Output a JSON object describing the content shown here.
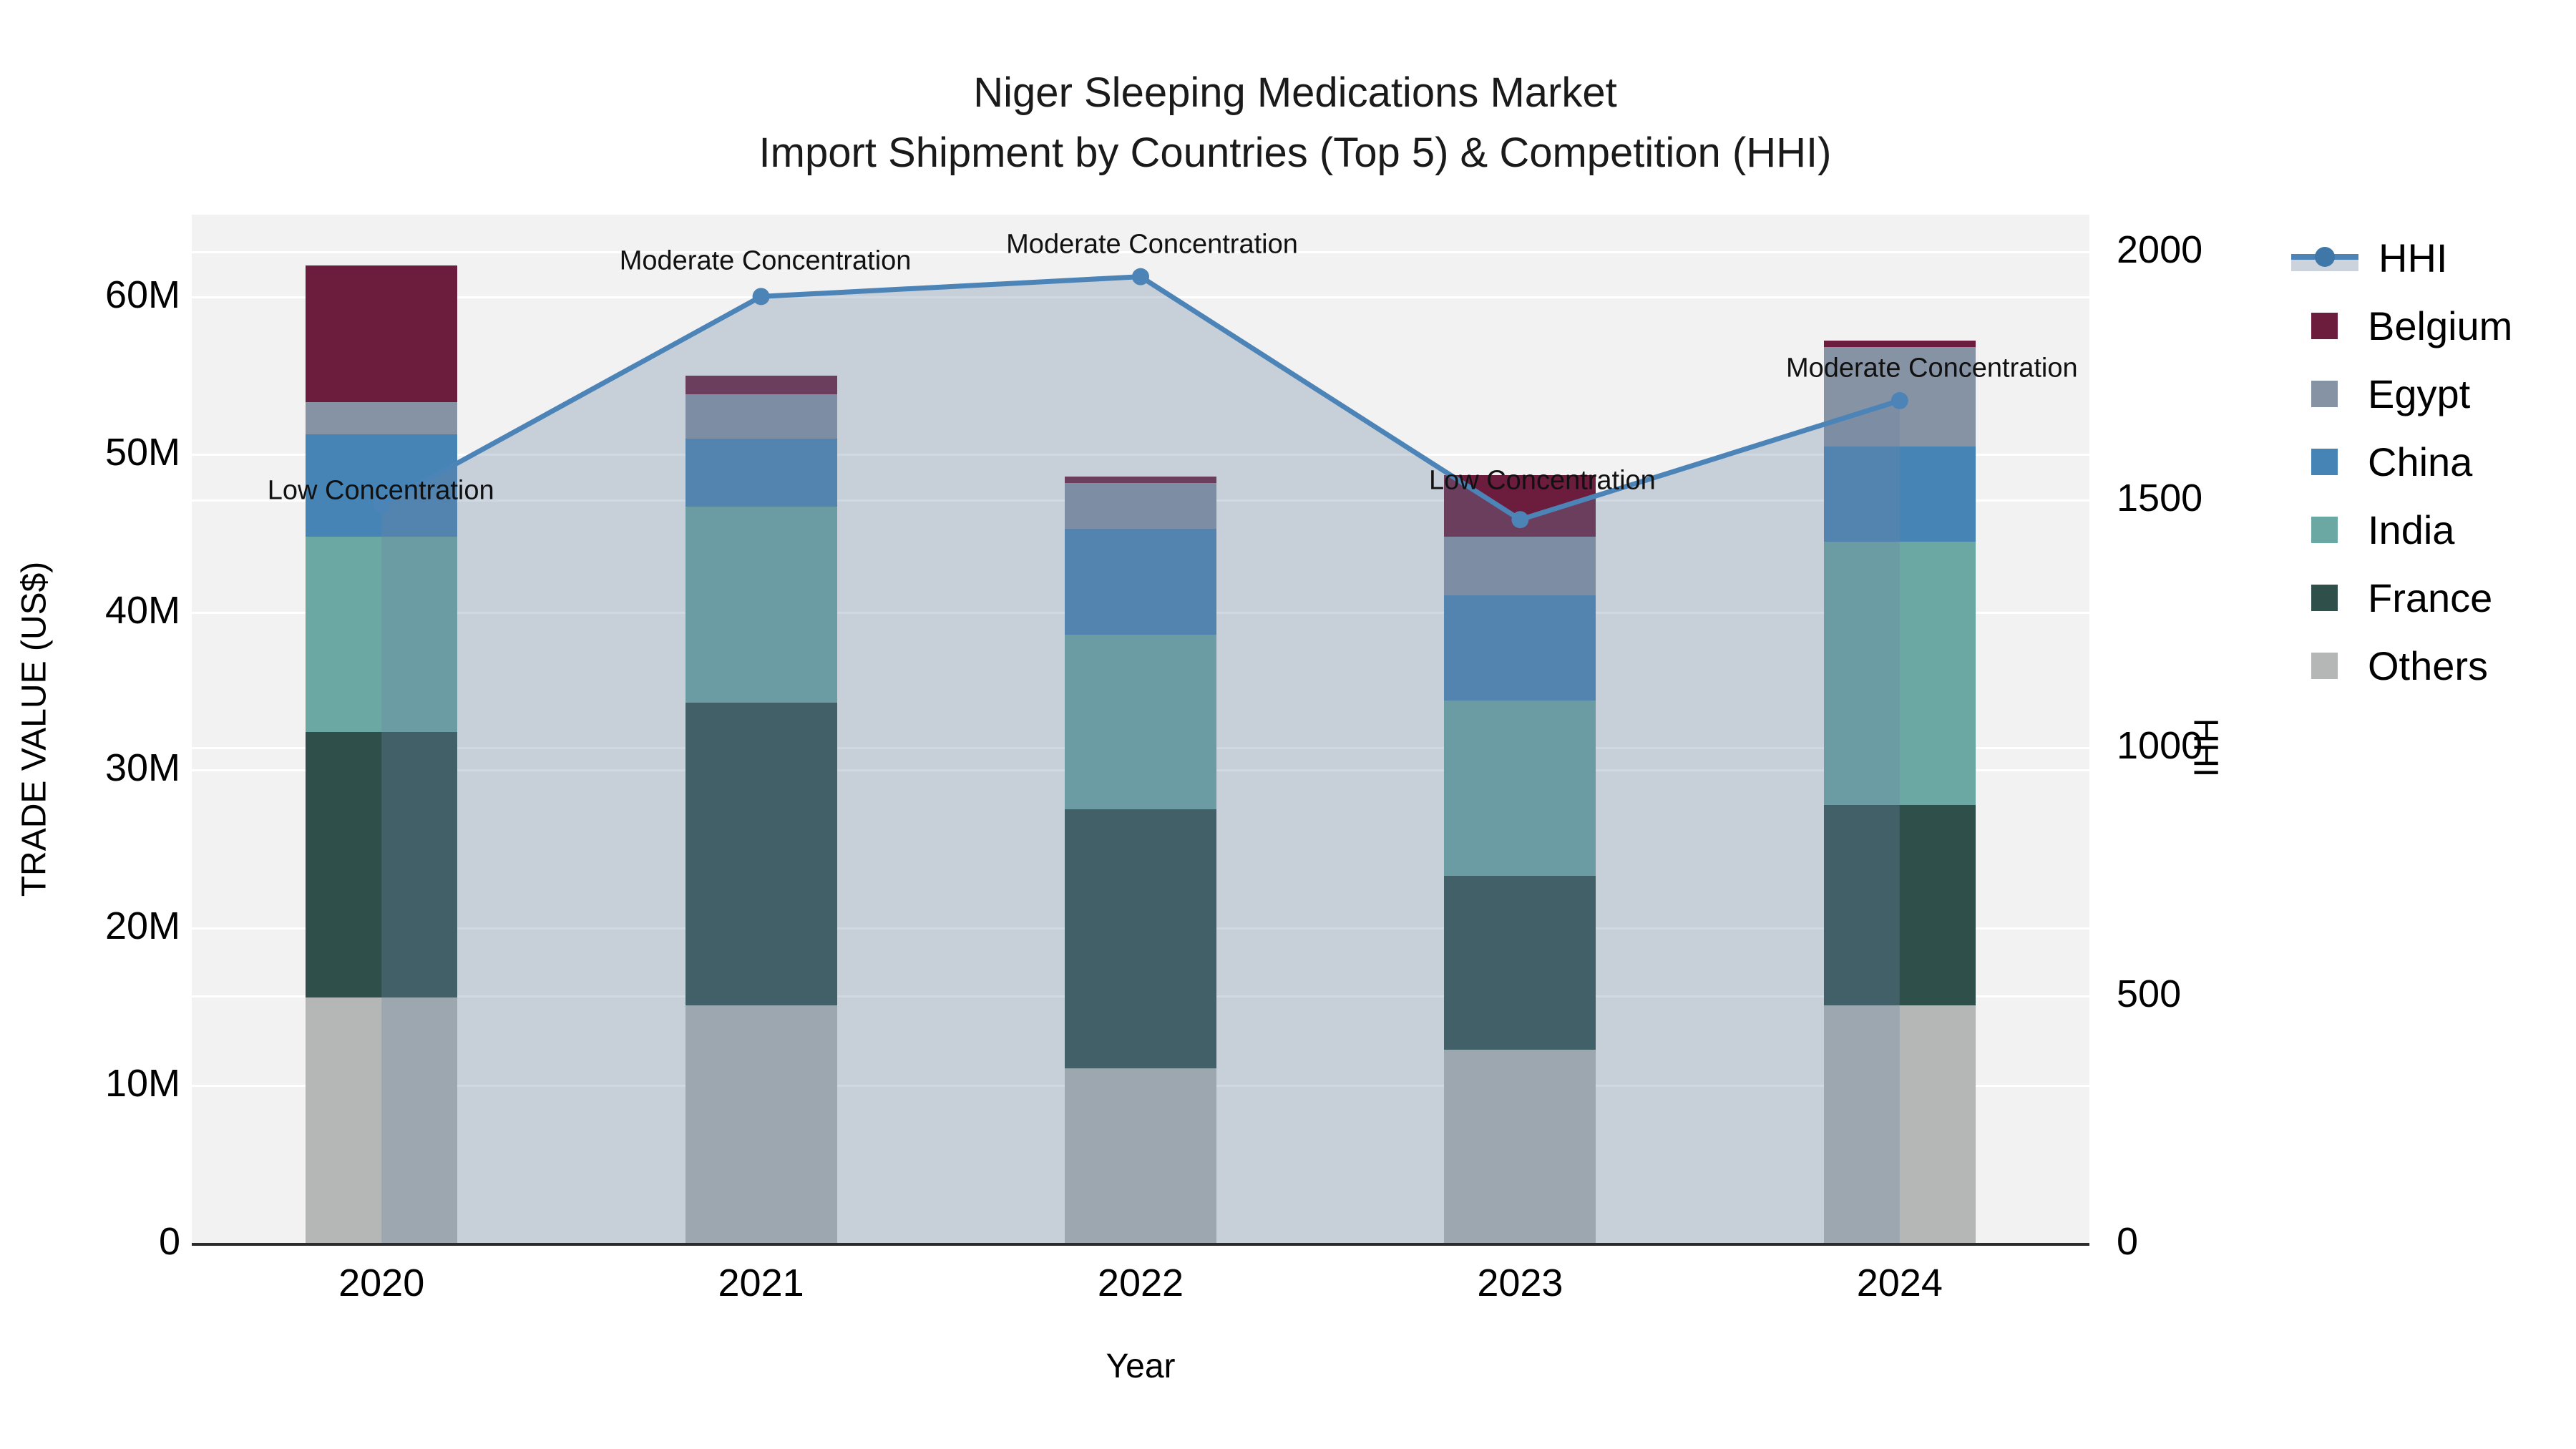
{
  "title": {
    "line1": "Niger Sleeping Medications Market",
    "line2": "Import Shipment by Countries (Top 5) & Competition (HHI)"
  },
  "axes": {
    "left": {
      "label": "TRADE VALUE (US$)",
      "tick_labels": [
        "0",
        "10M",
        "20M",
        "30M",
        "40M",
        "50M",
        "60M"
      ],
      "tick_values": [
        0,
        10,
        20,
        30,
        40,
        50,
        60
      ]
    },
    "right": {
      "label": "HHI",
      "tick_labels": [
        "0",
        "500",
        "1000",
        "1500",
        "2000"
      ],
      "tick_values": [
        0,
        500,
        1000,
        1500,
        2000
      ]
    },
    "x": {
      "label": "Year",
      "tick_labels": [
        "2020",
        "2021",
        "2022",
        "2023",
        "2024"
      ]
    }
  },
  "legend": {
    "items": [
      {
        "label": "HHI",
        "type": "line",
        "color": "#4c84b8"
      },
      {
        "label": "Belgium",
        "type": "box",
        "color": "#6c1d3d"
      },
      {
        "label": "Egypt",
        "type": "box",
        "color": "#8593a4"
      },
      {
        "label": "China",
        "type": "box",
        "color": "#4784b6"
      },
      {
        "label": "India",
        "type": "box",
        "color": "#6ba7a3"
      },
      {
        "label": "France",
        "type": "box",
        "color": "#2f4f4a"
      },
      {
        "label": "Others",
        "type": "box",
        "color": "#b4b7b6"
      }
    ]
  },
  "chart_data": {
    "type": "bar",
    "subtype": "stacked-bars-with-line",
    "title": "Niger Sleeping Medications Market — Import Shipment by Countries (Top 5) & Competition (HHI)",
    "categories": [
      "2020",
      "2021",
      "2022",
      "2023",
      "2024"
    ],
    "xlabel": "Year",
    "ylabel_left": "TRADE VALUE (US$)",
    "ylabel_right": "HHI",
    "unit": "million US$",
    "ylim_left": [
      0,
      65.2
    ],
    "ylim_right": [
      0,
      2000
    ],
    "grid": true,
    "legend_position": "right",
    "series": [
      {
        "name": "Others",
        "color": "#b4b7b6",
        "values": [
          15.6,
          15.1,
          11.1,
          12.3,
          15.1
        ]
      },
      {
        "name": "France",
        "color": "#2f4f4a",
        "values": [
          16.8,
          19.2,
          16.4,
          11.0,
          12.7
        ]
      },
      {
        "name": "India",
        "color": "#6ba7a3",
        "values": [
          12.4,
          12.4,
          11.1,
          11.1,
          16.7
        ]
      },
      {
        "name": "China",
        "color": "#4784b6",
        "values": [
          6.5,
          4.3,
          6.7,
          6.7,
          6.0
        ]
      },
      {
        "name": "Egypt",
        "color": "#8593a4",
        "values": [
          2.0,
          2.8,
          2.9,
          3.7,
          6.3
        ]
      },
      {
        "name": "Belgium",
        "color": "#6c1d3d",
        "values": [
          8.7,
          1.2,
          0.4,
          3.9,
          0.4
        ]
      }
    ],
    "bar_totals": [
      62.0,
      55.0,
      48.6,
      48.7,
      57.2
    ],
    "line_series": {
      "name": "HHI",
      "color": "#4c84b8",
      "area_fill": "rgba(110,135,165,0.32)",
      "axis": "right",
      "values": [
        1490,
        1910,
        1950,
        1460,
        1700
      ]
    },
    "annotations": [
      {
        "text": "Low Concentration",
        "category": "2020"
      },
      {
        "text": "Moderate Concentration",
        "category": "2021"
      },
      {
        "text": "Moderate Concentration",
        "category": "2022"
      },
      {
        "text": "Low Concentration",
        "category": "2023"
      },
      {
        "text": "Moderate Concentration",
        "category": "2024"
      }
    ]
  }
}
